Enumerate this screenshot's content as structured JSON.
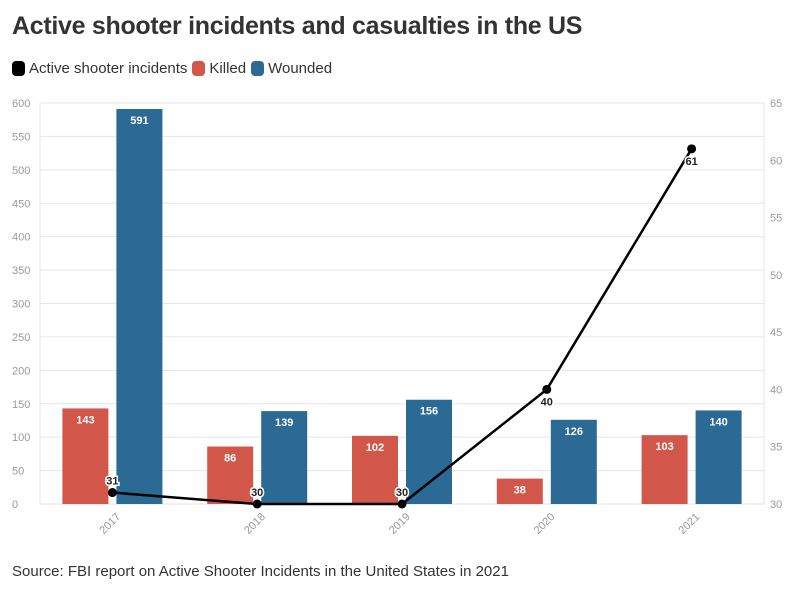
{
  "title": "Active shooter incidents and casualties in the US",
  "source": "Source: FBI report on Active Shooter Incidents in the United States in 2021",
  "legend": [
    {
      "label": "Active shooter incidents",
      "color": "#000000"
    },
    {
      "label": "Killed",
      "color": "#d2574a"
    },
    {
      "label": "Wounded",
      "color": "#2a6a94"
    }
  ],
  "chart_data": {
    "type": "bar",
    "title": "Active shooter incidents and casualties in the US",
    "categories": [
      "2017",
      "2018",
      "2019",
      "2020",
      "2021"
    ],
    "series": [
      {
        "name": "Killed",
        "type": "bar",
        "axis": "left",
        "color": "#d2574a",
        "values": [
          143,
          86,
          102,
          38,
          103
        ]
      },
      {
        "name": "Wounded",
        "type": "bar",
        "axis": "left",
        "color": "#2a6a94",
        "values": [
          591,
          139,
          156,
          126,
          140
        ]
      },
      {
        "name": "Active shooter incidents",
        "type": "line",
        "axis": "right",
        "color": "#000000",
        "values": [
          31,
          30,
          30,
          40,
          61
        ]
      }
    ],
    "ylim_left": [
      0,
      600
    ],
    "yticks_left": [
      0,
      50,
      100,
      150,
      200,
      250,
      300,
      350,
      400,
      450,
      500,
      550,
      600
    ],
    "ylim_right": [
      30,
      65
    ],
    "yticks_right": [
      30,
      35,
      40,
      45,
      50,
      55,
      60,
      65
    ],
    "grid": true,
    "legend_position": "top-left"
  }
}
